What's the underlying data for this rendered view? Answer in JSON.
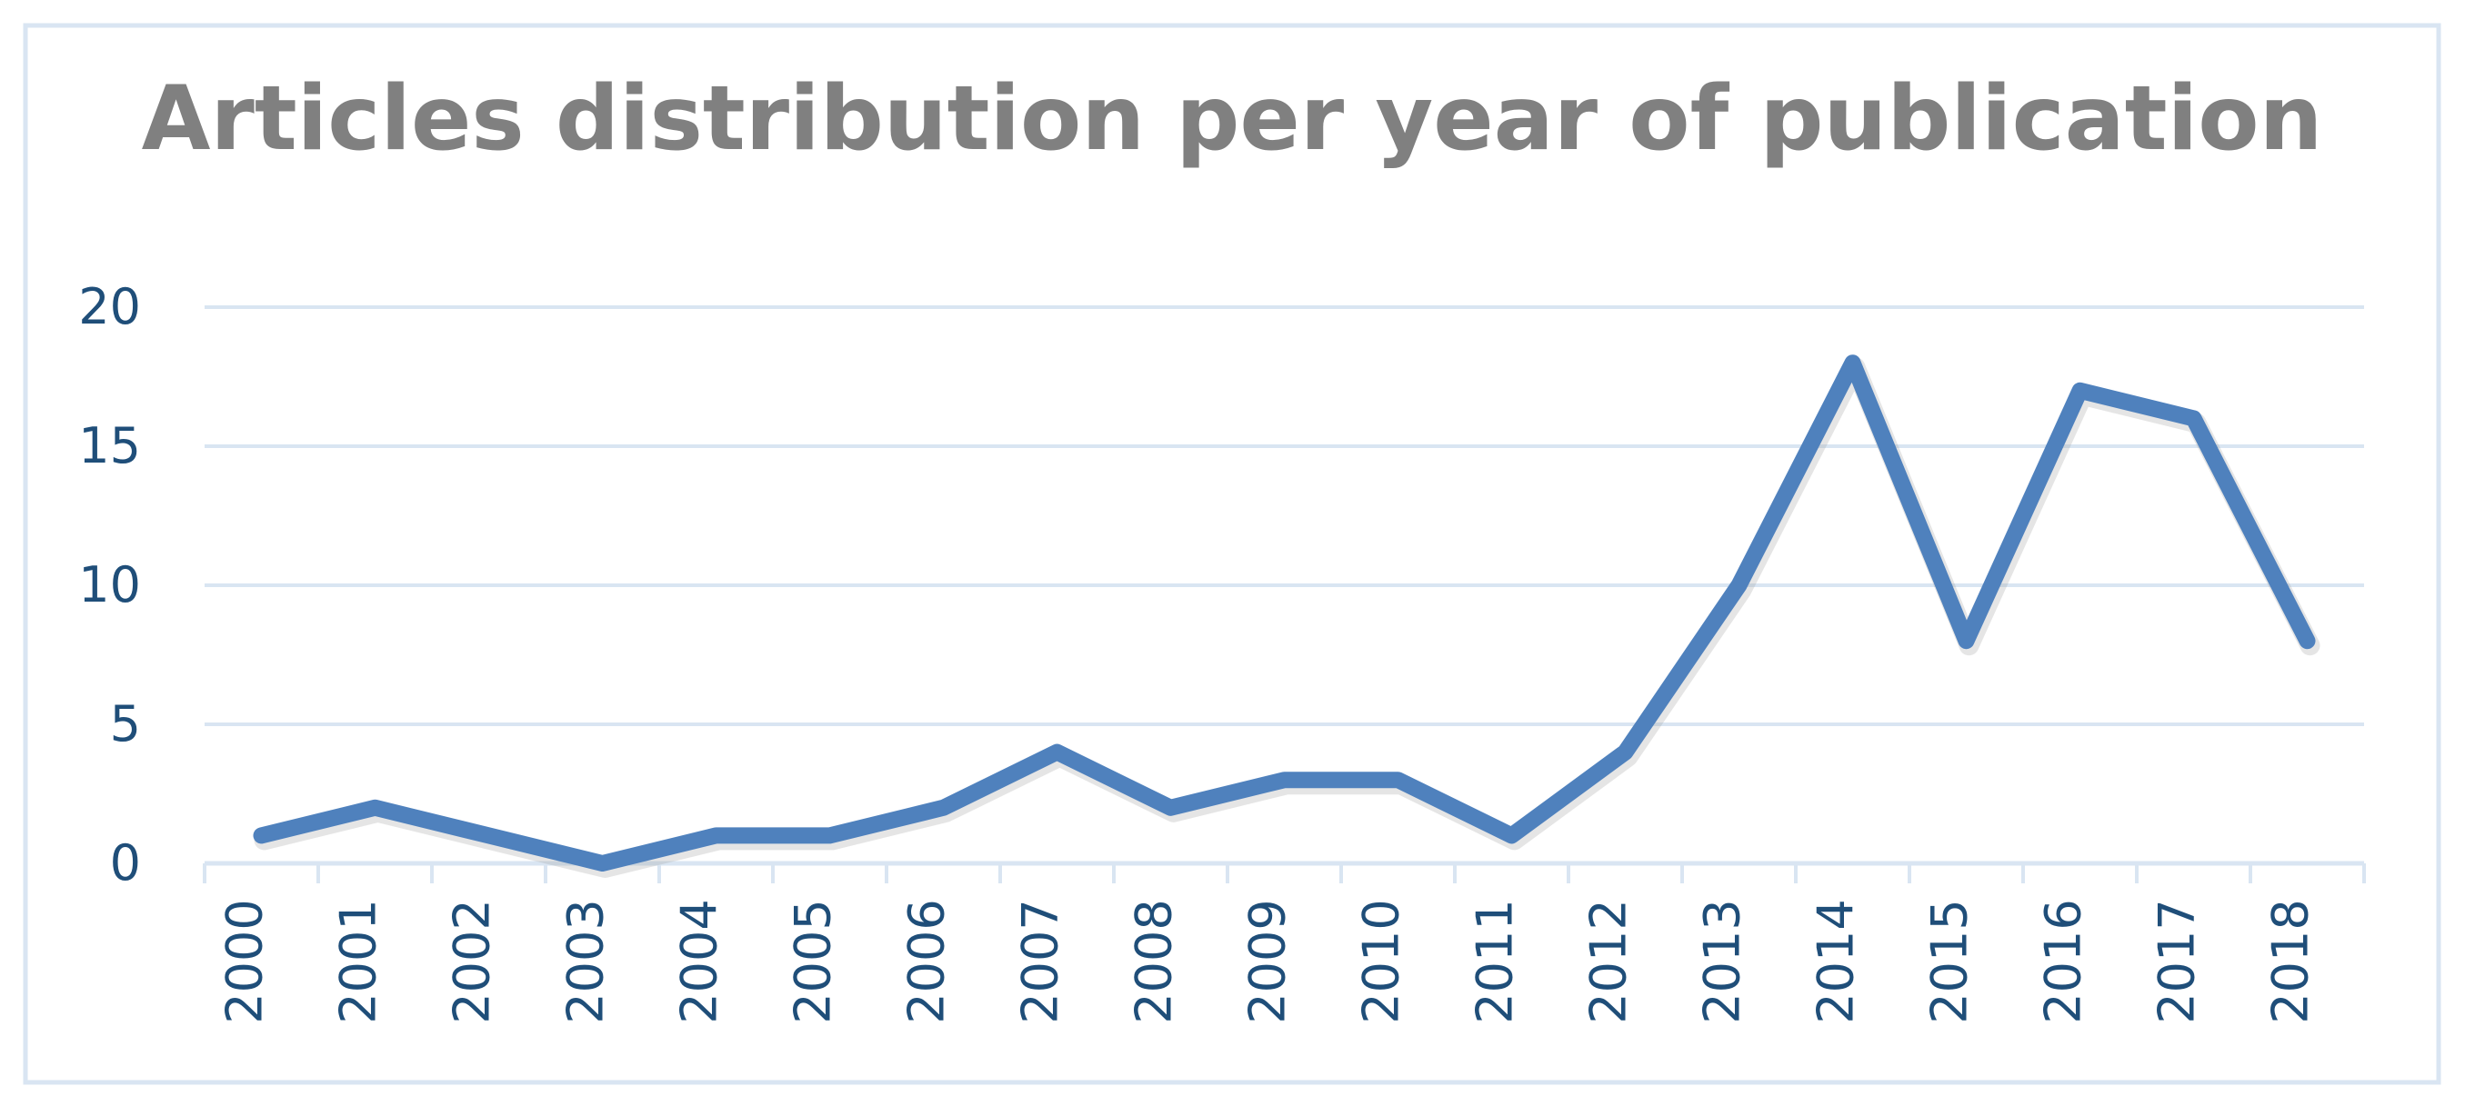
{
  "chart_data": {
    "type": "line",
    "title": "Articles distribution per year of publication",
    "xlabel": "",
    "ylabel": "",
    "categories": [
      "2000",
      "2001",
      "2002",
      "2003",
      "2004",
      "2005",
      "2006",
      "2007",
      "2008",
      "2009",
      "2010",
      "2011",
      "2012",
      "2013",
      "2014",
      "2015",
      "2016",
      "2017",
      "2018"
    ],
    "series": [
      {
        "values": [
          1,
          2,
          1,
          0,
          1,
          1,
          2,
          4,
          2,
          3,
          3,
          1,
          4,
          10,
          18,
          8,
          17,
          16,
          8
        ]
      }
    ],
    "ylim": [
      0,
      20
    ],
    "yticks": [
      0,
      5,
      10,
      15,
      20
    ],
    "grid": true,
    "legend": "none",
    "colors": {
      "line": "#4f81bd",
      "grid": "#d9e5f2",
      "axis": "#d9e5f2",
      "frame": "#d9e5f2",
      "tick_text": "#1f4e79",
      "title_text": "#808080"
    }
  }
}
